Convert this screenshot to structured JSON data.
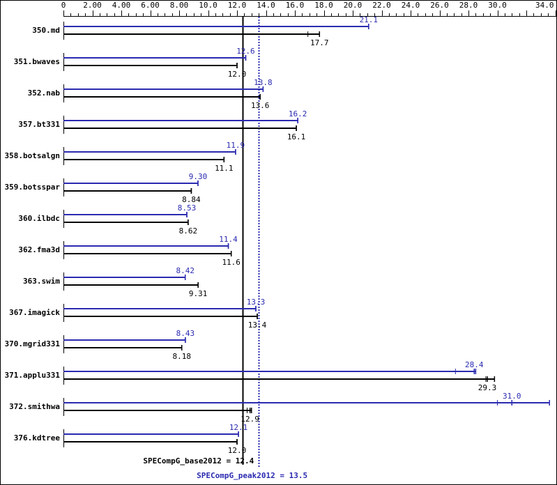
{
  "chart_data": {
    "type": "bar",
    "orientation": "horizontal",
    "xlim": [
      0,
      34.0
    ],
    "x_ticks": [
      "0",
      "2.00",
      "4.00",
      "6.00",
      "8.00",
      "10.0",
      "12.0",
      "14.0",
      "16.0",
      "18.0",
      "20.0",
      "22.0",
      "24.0",
      "26.0",
      "28.0",
      "30.0",
      "34.0"
    ],
    "x_tick_values": [
      0,
      2,
      4,
      6,
      8,
      10,
      12,
      14,
      16,
      18,
      20,
      22,
      24,
      26,
      28,
      30,
      34
    ],
    "colors": {
      "peak": "#2a2ab0",
      "base": "#000000"
    },
    "categories": [
      "350.md",
      "351.bwaves",
      "352.nab",
      "357.bt331",
      "358.botsalgn",
      "359.botsspar",
      "360.ilbdc",
      "362.fma3d",
      "363.swim",
      "367.imagick",
      "370.mgrid331",
      "371.applu331",
      "372.smithwa",
      "376.kdtree"
    ],
    "series": [
      {
        "name": "peak",
        "labels": [
          "21.1",
          "12.6",
          "13.8",
          "16.2",
          "11.9",
          "9.30",
          "8.53",
          "11.4",
          "8.42",
          "13.3",
          "8.43",
          "28.4",
          "31.0",
          "12.1"
        ],
        "values": [
          21.1,
          12.6,
          13.8,
          16.2,
          11.9,
          9.3,
          8.53,
          11.4,
          8.42,
          13.3,
          8.43,
          28.4,
          31.0,
          12.1
        ],
        "max": [
          21.1,
          12.6,
          13.8,
          16.2,
          11.9,
          9.3,
          8.53,
          11.4,
          8.42,
          13.3,
          8.43,
          28.5,
          33.6,
          12.1
        ],
        "extra_ticks": [
          [],
          [],
          [],
          [],
          [],
          [],
          [],
          [],
          [],
          [],
          [],
          [
            27.1
          ],
          [
            30.0
          ],
          []
        ]
      },
      {
        "name": "base",
        "labels": [
          "17.7",
          "12.0",
          "13.6",
          "16.1",
          "11.1",
          "8.84",
          "8.62",
          "11.6",
          "9.31",
          "13.4",
          "8.18",
          "29.3",
          "12.9",
          "12.0"
        ],
        "values": [
          17.7,
          12.0,
          13.6,
          16.1,
          11.1,
          8.84,
          8.62,
          11.6,
          9.31,
          13.4,
          8.18,
          29.3,
          12.9,
          12.0
        ],
        "max": [
          17.7,
          12.0,
          13.6,
          16.1,
          11.1,
          8.84,
          8.62,
          11.6,
          9.31,
          13.4,
          8.18,
          29.8,
          13.0,
          12.0
        ],
        "extra_ticks": [
          [
            16.9
          ],
          [],
          [],
          [],
          [],
          [],
          [],
          [],
          [],
          [],
          [],
          [
            29.2
          ],
          [
            12.7
          ],
          []
        ]
      }
    ],
    "reference_lines": [
      {
        "label": "SPECompG_base2012 = 12.4",
        "value": 12.4,
        "color": "#000000",
        "style": "solid"
      },
      {
        "label": "SPECompG_peak2012 = 13.5",
        "value": 13.5,
        "color": "#2a2ab0",
        "style": "dotted"
      }
    ],
    "grid": false
  }
}
